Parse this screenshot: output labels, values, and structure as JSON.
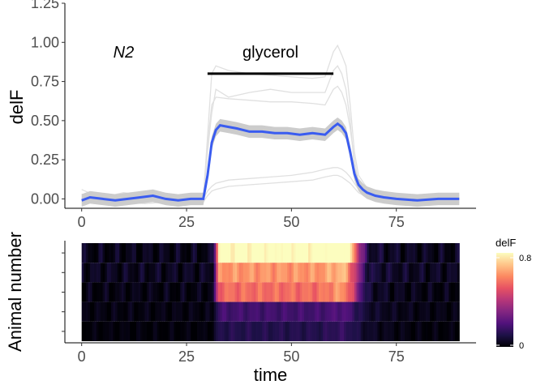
{
  "chart_data": [
    {
      "type": "line",
      "ylabel": "delF",
      "xlim": [
        -4,
        94
      ],
      "ylim": [
        -0.06,
        1.25
      ],
      "xticks": [
        "0",
        "25",
        "50",
        "75"
      ],
      "xtick_values": [
        0,
        25,
        50,
        75
      ],
      "yticks": [
        "0.00",
        "0.25",
        "0.50",
        "0.75",
        "1.00",
        "1.25"
      ],
      "ytick_values": [
        0,
        0.25,
        0.5,
        0.75,
        1.0,
        1.25
      ],
      "annotations": [
        {
          "text": "N2",
          "x": 10,
          "y": 0.94,
          "style": "italic"
        },
        {
          "text": "glycerol",
          "x": 45,
          "y": 0.94,
          "style": "normal"
        }
      ],
      "stimulus_bar": {
        "x_start": 30,
        "x_end": 60,
        "y": 0.8
      },
      "mean": {
        "color": "#3a5cf0",
        "x": [
          0,
          2,
          5,
          8,
          11,
          14,
          17,
          20,
          23,
          26,
          29,
          30,
          31,
          32,
          33,
          35,
          37,
          40,
          43,
          46,
          49,
          52,
          55,
          58,
          60,
          61,
          62,
          63,
          64,
          65,
          66,
          67,
          68,
          70,
          72,
          75,
          80,
          85,
          90
        ],
        "y": [
          -0.01,
          0.01,
          0.0,
          -0.01,
          0.0,
          0.01,
          0.02,
          0.0,
          -0.01,
          0.0,
          0.0,
          0.15,
          0.36,
          0.44,
          0.47,
          0.46,
          0.45,
          0.43,
          0.43,
          0.42,
          0.42,
          0.41,
          0.42,
          0.41,
          0.46,
          0.48,
          0.46,
          0.42,
          0.3,
          0.16,
          0.09,
          0.06,
          0.04,
          0.02,
          0.01,
          0.0,
          -0.01,
          0.0,
          0.0
        ],
        "ci_halfwidth": 0.04,
        "ci_color": "#cccccc"
      },
      "traces": {
        "color": "#e0e0e0",
        "x": [
          0,
          5,
          10,
          15,
          20,
          25,
          29,
          30,
          31,
          32,
          35,
          40,
          45,
          50,
          55,
          58,
          60,
          61,
          62,
          63,
          64,
          65,
          66,
          68,
          70,
          75,
          80,
          85,
          90
        ],
        "series": [
          {
            "y": [
              0.06,
              0.0,
              0.03,
              0.0,
              0.02,
              0.01,
              0.0,
              0.4,
              0.8,
              0.85,
              0.82,
              0.8,
              0.79,
              0.78,
              0.77,
              0.78,
              0.94,
              0.98,
              0.92,
              0.85,
              0.6,
              0.3,
              0.15,
              0.07,
              0.04,
              0.03,
              0.02,
              0.01,
              0.02
            ]
          },
          {
            "y": [
              0.03,
              0.01,
              0.04,
              0.02,
              0.01,
              0.03,
              0.02,
              0.35,
              0.6,
              0.65,
              0.64,
              0.63,
              0.62,
              0.62,
              0.61,
              0.6,
              0.7,
              0.72,
              0.68,
              0.6,
              0.45,
              0.25,
              0.1,
              0.05,
              0.02,
              0.02,
              0.01,
              0.01,
              0.0
            ]
          },
          {
            "y": [
              0.0,
              -0.02,
              0.01,
              -0.01,
              0.0,
              -0.02,
              -0.01,
              0.3,
              0.55,
              0.7,
              0.65,
              0.68,
              0.7,
              0.68,
              0.68,
              0.68,
              0.82,
              0.85,
              0.8,
              0.7,
              0.5,
              0.2,
              0.08,
              0.03,
              0.01,
              0.0,
              0.0,
              -0.01,
              0.0
            ]
          },
          {
            "y": [
              0.0,
              0.0,
              0.0,
              0.01,
              0.0,
              0.0,
              0.0,
              0.05,
              0.08,
              0.1,
              0.12,
              0.13,
              0.14,
              0.15,
              0.17,
              0.19,
              0.2,
              0.2,
              0.19,
              0.17,
              0.14,
              0.1,
              0.06,
              0.04,
              0.02,
              0.01,
              0.0,
              0.0,
              0.0
            ]
          },
          {
            "y": [
              -0.02,
              -0.03,
              -0.02,
              -0.03,
              -0.02,
              -0.03,
              -0.02,
              0.02,
              0.05,
              0.06,
              0.08,
              0.09,
              0.1,
              0.11,
              0.12,
              0.14,
              0.15,
              0.15,
              0.14,
              0.12,
              0.1,
              0.07,
              0.04,
              0.01,
              -0.01,
              -0.02,
              -0.02,
              -0.03,
              -0.02
            ]
          }
        ]
      }
    },
    {
      "type": "heatmap",
      "xlabel": "time",
      "ylabel": "Animal number",
      "xlim": [
        -4,
        94
      ],
      "xticks": [
        "0",
        "25",
        "50",
        "75"
      ],
      "xtick_values": [
        0,
        25,
        50,
        75
      ],
      "x_range": [
        0,
        90
      ],
      "rows": 5,
      "colorbar": {
        "title": "delF",
        "min": 0,
        "max": 0.8,
        "tick_labels": [
          "0",
          "0.8"
        ],
        "stops": [
          "#000004",
          "#1d1147",
          "#51127c",
          "#832681",
          "#b73779",
          "#e75263",
          "#fc8961",
          "#fec488",
          "#fcfdbf"
        ]
      },
      "row_profiles": [
        {
          "base": 0.03,
          "plateau": 0.82,
          "end_peak": 0.95
        },
        {
          "base": 0.04,
          "plateau": 0.62,
          "end_peak": 0.68
        },
        {
          "base": 0.02,
          "plateau": 0.55,
          "end_peak": 0.62
        },
        {
          "base": 0.02,
          "plateau": 0.17,
          "end_peak": 0.2
        },
        {
          "base": 0.01,
          "plateau": 0.11,
          "end_peak": 0.14
        }
      ]
    }
  ]
}
